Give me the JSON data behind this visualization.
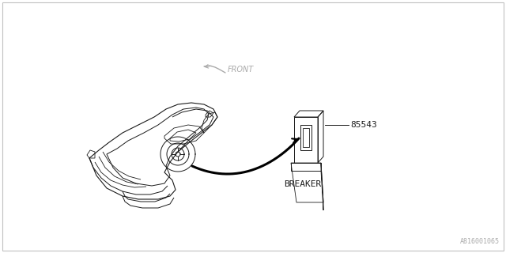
{
  "bg_color": "#ffffff",
  "border_color": "#c0c0c0",
  "line_color": "#1a1a1a",
  "gray_text": "#aaaaaa",
  "part_number": "85543",
  "label_breaker": "BREAKER",
  "label_front": "FRONT",
  "diagram_id": "A816001065",
  "figsize": [
    6.4,
    3.2
  ],
  "dpi": 100
}
